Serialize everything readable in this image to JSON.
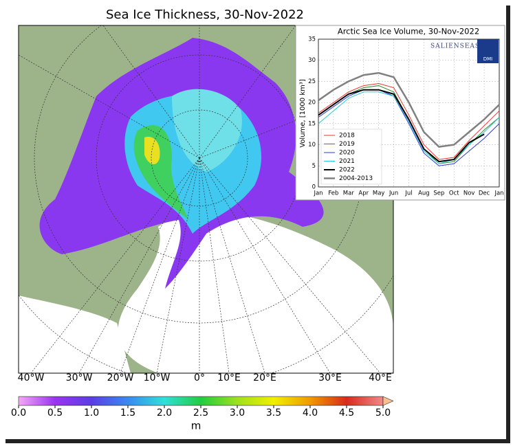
{
  "map": {
    "title": "Sea Ice Thickness, 30-Nov-2022",
    "lon_labels": [
      "40°W",
      "30°W",
      "20°W",
      "10°W",
      "0°",
      "10°E",
      "20°E",
      "30°E",
      "40°E"
    ],
    "colorbar": {
      "ticks": [
        {
          "value": 0,
          "label": "0.0"
        },
        {
          "value": 0.5,
          "label": "0.5"
        },
        {
          "value": 1,
          "label": "1.0"
        },
        {
          "value": 1.5,
          "label": "1.5"
        },
        {
          "value": 2,
          "label": "2.0"
        },
        {
          "value": 2.5,
          "label": "2.5"
        },
        {
          "value": 3,
          "label": "3.0"
        },
        {
          "value": 3.5,
          "label": "3.5"
        },
        {
          "value": 4,
          "label": "4.0"
        },
        {
          "value": 4.5,
          "label": "4.5"
        },
        {
          "value": 5,
          "label": "5.0"
        }
      ],
      "lim": [
        0,
        5
      ],
      "colors": [
        "#f4a8f4",
        "#9a34f0",
        "#5a3ee6",
        "#3a8af0",
        "#30e0d8",
        "#22cc40",
        "#9ee020",
        "#f0f000",
        "#f09a00",
        "#d82a1c",
        "#f08a8a"
      ],
      "extend_color": "#f8c090",
      "unit": "m"
    }
  },
  "chart_data": {
    "type": "line",
    "title": "Arctic Sea Ice Volume, 30-Nov-2022",
    "y_label": "Volume, [1000 km³]",
    "logo_text": "SALIENSEAS",
    "logo_badge": "DMI",
    "categories": [
      "Jan",
      "Feb",
      "Mar",
      "Apr",
      "May",
      "Jun",
      "Jul",
      "Aug",
      "Sep",
      "Oct",
      "Nov",
      "Dec",
      "Jan"
    ],
    "ylim": [
      0,
      35
    ],
    "yticks": [
      0,
      5,
      10,
      15,
      20,
      25,
      30,
      35
    ],
    "grid": true,
    "legend": "lower left",
    "series": [
      {
        "name": "2018",
        "color": "#e8352a",
        "width": 1,
        "values": [
          17.5,
          20,
          22.5,
          24,
          24.5,
          23.5,
          17,
          10,
          6.5,
          7,
          11,
          14.5,
          18
        ]
      },
      {
        "name": "2019",
        "color": "#2e8b2e",
        "width": 1,
        "values": [
          17,
          19.5,
          22,
          23.5,
          24,
          22.5,
          16,
          9,
          5.5,
          6,
          10,
          13.5,
          16.5
        ]
      },
      {
        "name": "2020",
        "color": "#2a3cd0",
        "width": 1,
        "values": [
          16.5,
          19,
          21.5,
          23,
          23,
          21.5,
          15,
          8,
          5,
          5.5,
          8.5,
          11.5,
          15
        ]
      },
      {
        "name": "2021",
        "color": "#22c8d8",
        "width": 1,
        "values": [
          15,
          18,
          21,
          22.5,
          22.5,
          21.5,
          15.5,
          8.5,
          5.5,
          6.5,
          10,
          13,
          16.5
        ]
      },
      {
        "name": "2022",
        "color": "#000000",
        "width": 2,
        "values": [
          17,
          19.5,
          22,
          23,
          23,
          22,
          16,
          9,
          6,
          6.5,
          10.5,
          12.5,
          null
        ]
      },
      {
        "name": "2004-2013",
        "color": "#808080",
        "width": 2.5,
        "values": [
          20.5,
          23,
          25,
          26.5,
          27,
          26,
          20,
          13,
          9.5,
          10,
          13,
          16,
          19.5
        ]
      }
    ]
  }
}
